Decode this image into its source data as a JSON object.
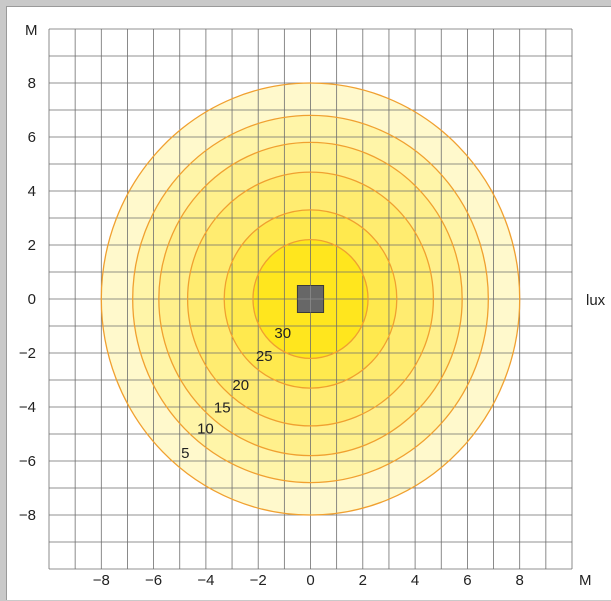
{
  "chart_data": {
    "type": "contour",
    "title": "",
    "xlabel": "M",
    "ylabel": "M",
    "unit_label": "lux",
    "xlim": [
      -10,
      10
    ],
    "ylim": [
      -10,
      10
    ],
    "grid": true,
    "x_ticks": [
      -8,
      -6,
      -4,
      -2,
      0,
      2,
      4,
      6,
      8
    ],
    "y_ticks": [
      8,
      6,
      4,
      2,
      0,
      -2,
      -4,
      -6,
      -8
    ],
    "x_tick_labels": [
      "−8",
      "−6",
      "−4",
      "−2",
      "0",
      "2",
      "4",
      "6",
      "8"
    ],
    "y_tick_labels": [
      "8",
      "6",
      "4",
      "2",
      "0",
      "−2",
      "−4",
      "−6",
      "−8"
    ],
    "contours": [
      {
        "level": "5",
        "radius": 8.0,
        "fill": "#fff9cc"
      },
      {
        "level": "10",
        "radius": 6.8,
        "fill": "#fff5a8"
      },
      {
        "level": "15",
        "radius": 5.8,
        "fill": "#fff08c"
      },
      {
        "level": "20",
        "radius": 4.7,
        "fill": "#ffec70"
      },
      {
        "level": "25",
        "radius": 3.3,
        "fill": "#ffe94e"
      },
      {
        "level": "30",
        "radius": 2.2,
        "fill": "#ffe61e"
      }
    ],
    "contour_stroke": "#f0a030",
    "luminaire": {
      "x": 0,
      "y": 0,
      "size": 1.0,
      "color": "#676767"
    }
  }
}
